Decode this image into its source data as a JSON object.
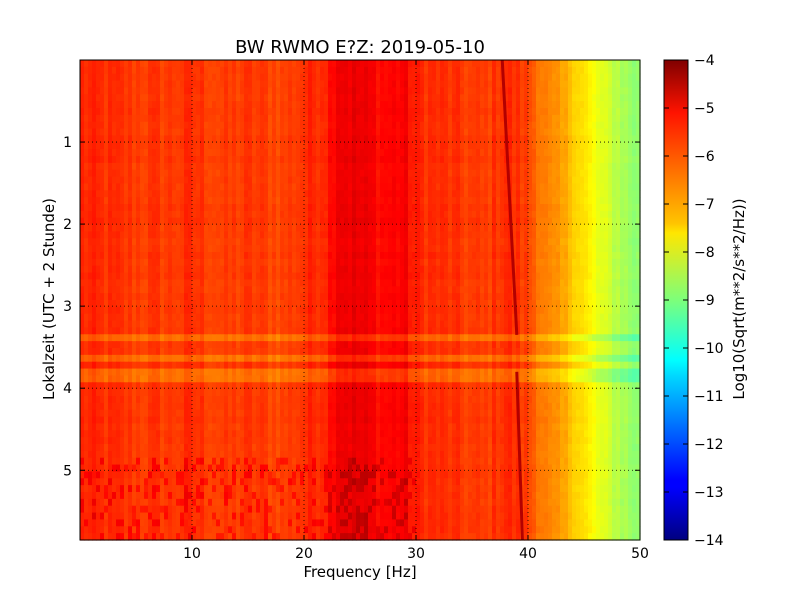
{
  "chart_data": {
    "type": "heatmap",
    "title": "BW RWMO E?Z: 2019-05-10",
    "xlabel": "Frequency [Hz]",
    "ylabel": "Lokalzeit (UTC + 2 Stunde)",
    "colorbar_label": "Log10(Sqrt(m**2/s**2/Hz))",
    "xlim": [
      0,
      50
    ],
    "ylim": [
      5.85,
      0
    ],
    "x_ticks": [
      10,
      20,
      30,
      40,
      50
    ],
    "y_ticks": [
      1,
      2,
      3,
      4,
      5
    ],
    "colorbar_range": [
      -14,
      -4
    ],
    "colorbar_ticks": [
      -4,
      -5,
      -6,
      -7,
      -8,
      -9,
      -10,
      -11,
      -12,
      -13,
      -14
    ],
    "colormap": "jet",
    "grid": true,
    "features": {
      "tonal_line_upper": {
        "f_start": 37.7,
        "t_start": 0.0,
        "f_end": 39.0,
        "t_end": 3.35,
        "level": -4.5
      },
      "tonal_line_lower": {
        "f_start": 39.0,
        "t_start": 3.8,
        "f_end": 39.5,
        "t_end": 5.85,
        "level": -4.5
      },
      "disturbed_bands_hours": [
        [
          3.35,
          3.45
        ],
        [
          3.6,
          3.7
        ],
        [
          3.75,
          3.85
        ],
        [
          3.85,
          3.92
        ]
      ]
    },
    "spectrum_profile": {
      "frequency_hz": [
        0,
        2,
        5,
        8,
        10,
        13,
        15,
        18,
        20,
        22,
        23,
        25,
        27,
        29,
        30,
        32,
        34,
        36,
        38,
        40,
        41,
        42,
        43,
        44,
        45,
        46,
        47,
        48,
        49,
        50
      ],
      "log_psd": [
        -5.6,
        -5.7,
        -5.8,
        -5.8,
        -5.7,
        -5.9,
        -5.8,
        -5.9,
        -5.7,
        -5.5,
        -5.0,
        -5.1,
        -5.3,
        -5.2,
        -5.6,
        -5.7,
        -5.8,
        -5.9,
        -5.6,
        -5.9,
        -6.3,
        -6.7,
        -6.9,
        -7.1,
        -7.5,
        -7.9,
        -8.2,
        -8.4,
        -8.7,
        -8.9
      ]
    }
  }
}
